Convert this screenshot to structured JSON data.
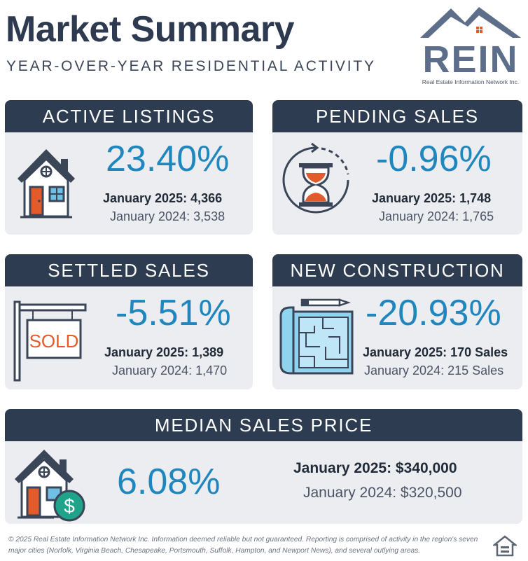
{
  "header": {
    "title": "Market Summary",
    "subtitle": "YEAR-OVER-YEAR RESIDENTIAL ACTIVITY"
  },
  "logo": {
    "text": "REIN",
    "tagline": "Real Estate Information Network Inc."
  },
  "cards": {
    "active_listings": {
      "title": "ACTIVE LISTINGS",
      "percent": "23.40%",
      "current": "January 2025: 4,366",
      "previous": "January 2024: 3,538",
      "icon": "house-icon"
    },
    "pending_sales": {
      "title": "PENDING SALES",
      "percent": "-0.96%",
      "current": "January 2025: 1,748",
      "previous": "January 2024: 1,765",
      "icon": "hourglass-icon"
    },
    "settled_sales": {
      "title": "SETTLED SALES",
      "percent": "-5.51%",
      "current": "January 2025: 1,389",
      "previous": "January 2024: 1,470",
      "icon": "sold-sign-icon",
      "sign_text": "SOLD"
    },
    "new_construction": {
      "title": "NEW CONSTRUCTION",
      "percent": "-20.93%",
      "current": "January 2025: 170 Sales",
      "previous": "January 2024: 215 Sales",
      "icon": "blueprint-icon"
    },
    "median_sales_price": {
      "title": "MEDIAN SALES PRICE",
      "percent": "6.08%",
      "current": "January 2025: $340,000",
      "previous": "January 2024: $320,500",
      "icon": "house-dollar-icon",
      "coin_symbol": "$"
    }
  },
  "footer": {
    "disclaimer": "© 2025 Real Estate Information Network Inc. Information deemed reliable but not guaranteed. Reporting is comprised of activity in the region's seven major cities (Norfolk, Virginia Beach, Chesapeake, Portsmouth, Suffolk, Hampton, and Newport News), and several outlying areas.",
    "badge_icon": "equal-housing-opportunity-icon"
  },
  "colors": {
    "header_bg": "#2e3c52",
    "card_bg": "#ebedf1",
    "accent_blue": "#1f86be",
    "house_orange": "#e35a2b"
  }
}
